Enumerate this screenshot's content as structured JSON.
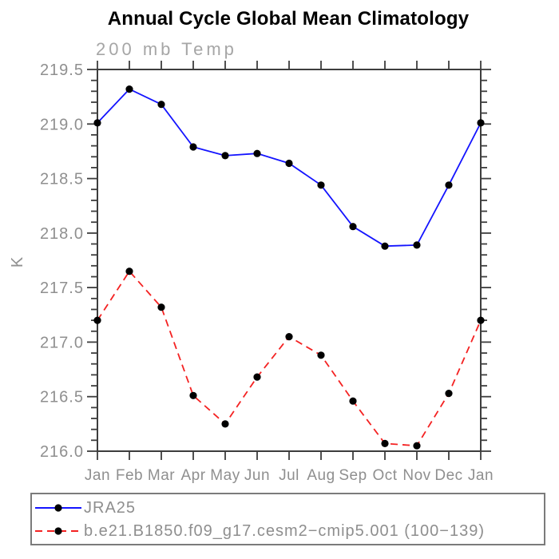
{
  "header": {
    "title": "Annual Cycle Global Mean Climatology"
  },
  "chart": {
    "left_string": "200 mb Temp",
    "y_axis_title": "K"
  },
  "colors": {
    "axis": "#3d3d3d",
    "tick_label": "#8f8f8f",
    "series1": "#1414ff",
    "series2": "#f42222",
    "marker": "#000000",
    "legend_border": "#7b7b7b",
    "legend_text": "#8e8e8e"
  },
  "chart_data": {
    "type": "line",
    "title": "Annual Cycle Global Mean Climatology",
    "subtitle": "200 mb Temp",
    "categories": [
      "Jan",
      "Feb",
      "Mar",
      "Apr",
      "May",
      "Jun",
      "Jul",
      "Aug",
      "Sep",
      "Oct",
      "Nov",
      "Dec",
      "Jan"
    ],
    "xlabel": "",
    "ylabel": "K",
    "ylim": [
      216.0,
      219.5
    ],
    "ytick_step": 0.5,
    "yminor_step": 0.1,
    "grid": false,
    "legend_position": "bottom-left-box",
    "series": [
      {
        "name": "JRA25",
        "style": "solid",
        "color": "#1414ff",
        "marker": "filled-circle",
        "marker_color": "#000000",
        "values": [
          219.01,
          219.32,
          219.18,
          218.79,
          218.71,
          218.73,
          218.64,
          218.44,
          218.06,
          217.88,
          217.89,
          218.44,
          219.01
        ]
      },
      {
        "name": "b.e21.B1850.f09_g17.cesm2−cmip5.001 (100−139)",
        "style": "dashed",
        "color": "#f42222",
        "marker": "filled-circle",
        "marker_color": "#000000",
        "values": [
          217.2,
          217.65,
          217.32,
          216.51,
          216.25,
          216.68,
          217.05,
          216.88,
          216.46,
          216.07,
          216.05,
          216.53,
          217.2
        ]
      }
    ]
  }
}
